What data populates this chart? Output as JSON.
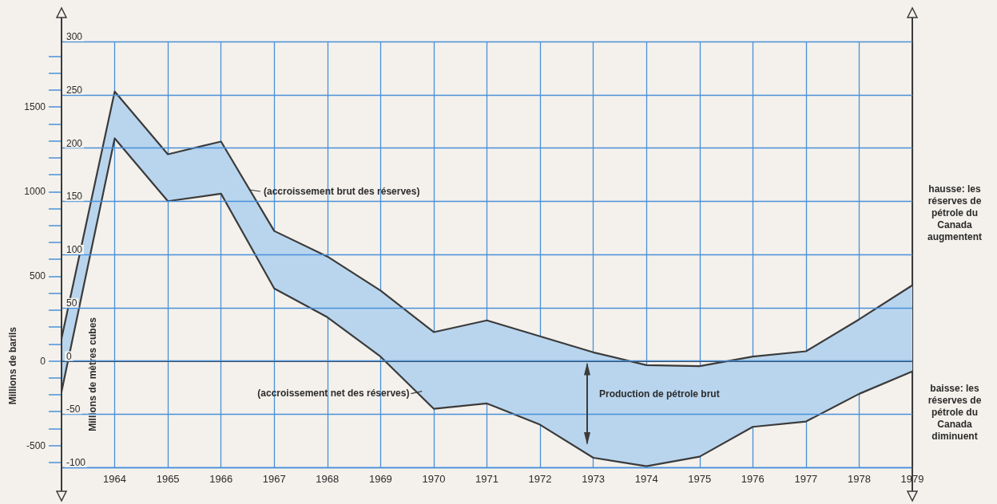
{
  "chart_data": {
    "type": "line",
    "ylabel": "Millions de mètres cubes",
    "y2label": "Millions de barils",
    "x": [
      1963,
      1964,
      1965,
      1966,
      1967,
      1968,
      1969,
      1970,
      1971,
      1972,
      1973,
      1974,
      1975,
      1976,
      1977,
      1978,
      1979
    ],
    "series": [
      {
        "color": "#3b3b3b",
        "values": [
          21,
          253,
          194,
          206,
          122,
          98,
          66,
          27,
          38,
          23,
          8,
          -4,
          -5,
          4,
          9,
          39,
          71
        ],
        "lower": [
          -29,
          209,
          150,
          157,
          68,
          41,
          4,
          -45,
          -40,
          -60,
          -91,
          -99,
          -90,
          -62,
          -57,
          -31,
          -10
        ],
        "upper": [
          21,
          253,
          194,
          206,
          122,
          98,
          66,
          27,
          38,
          23,
          8,
          -4,
          -5,
          4,
          9,
          39,
          71
        ]
      },
      {
        "color": "#3b3b3b",
        "values": [
          -29,
          209,
          150,
          157,
          68,
          41,
          4,
          -45,
          -40,
          -60,
          -91,
          -99,
          -90,
          -62,
          -57,
          -31,
          -10
        ]
      }
    ],
    "xlim": [
      1963,
      1979
    ],
    "xticks": [
      1964,
      1965,
      1966,
      1967,
      1968,
      1969,
      1970,
      1971,
      1972,
      1973,
      1974,
      1975,
      1976,
      1977,
      1978,
      1979
    ],
    "ylim": [
      -100,
      300
    ],
    "yticks": [
      -100,
      -50,
      0,
      50,
      100,
      150,
      200,
      250,
      300
    ],
    "y2lim": [
      -629,
      1887
    ],
    "y2ticks": [
      {
        "value": -600,
        "label": null
      },
      -500,
      {
        "value": -400,
        "label": null
      },
      {
        "value": -300,
        "label": null
      },
      {
        "value": -200,
        "label": null
      },
      {
        "value": -100,
        "label": null
      },
      0,
      {
        "value": 100,
        "label": null
      },
      {
        "value": 200,
        "label": null
      },
      {
        "value": 300,
        "label": null
      },
      {
        "value": 400,
        "label": null
      },
      500,
      {
        "value": 600,
        "label": null
      },
      {
        "value": 700,
        "label": null
      },
      {
        "value": 800,
        "label": null
      },
      {
        "value": 900,
        "label": null
      },
      1000,
      {
        "value": 1100,
        "label": null
      },
      {
        "value": 1200,
        "label": null
      },
      {
        "value": 1300,
        "label": null
      },
      {
        "value": 1400,
        "label": null
      },
      1500,
      {
        "value": 1600,
        "label": null
      },
      {
        "value": 1700,
        "label": null
      },
      {
        "value": 1800,
        "label": null
      }
    ],
    "ref_lines": [
      {
        "axis": "y",
        "value": 0,
        "color": "#3b3b3b"
      }
    ],
    "annotations": [
      "(accroissement brut des réserves)",
      {
        "text": "(accroissement net des réserves)",
        "x": 1969.75,
        "y": -30
      },
      "Production de pétrole brut",
      "hausse: les réserves de pétrole du Canada augmentent",
      "baisse: les réserves de pétrole du Canada diminuent"
    ],
    "grid": true,
    "marker": "none",
    "line_style": "solid"
  }
}
